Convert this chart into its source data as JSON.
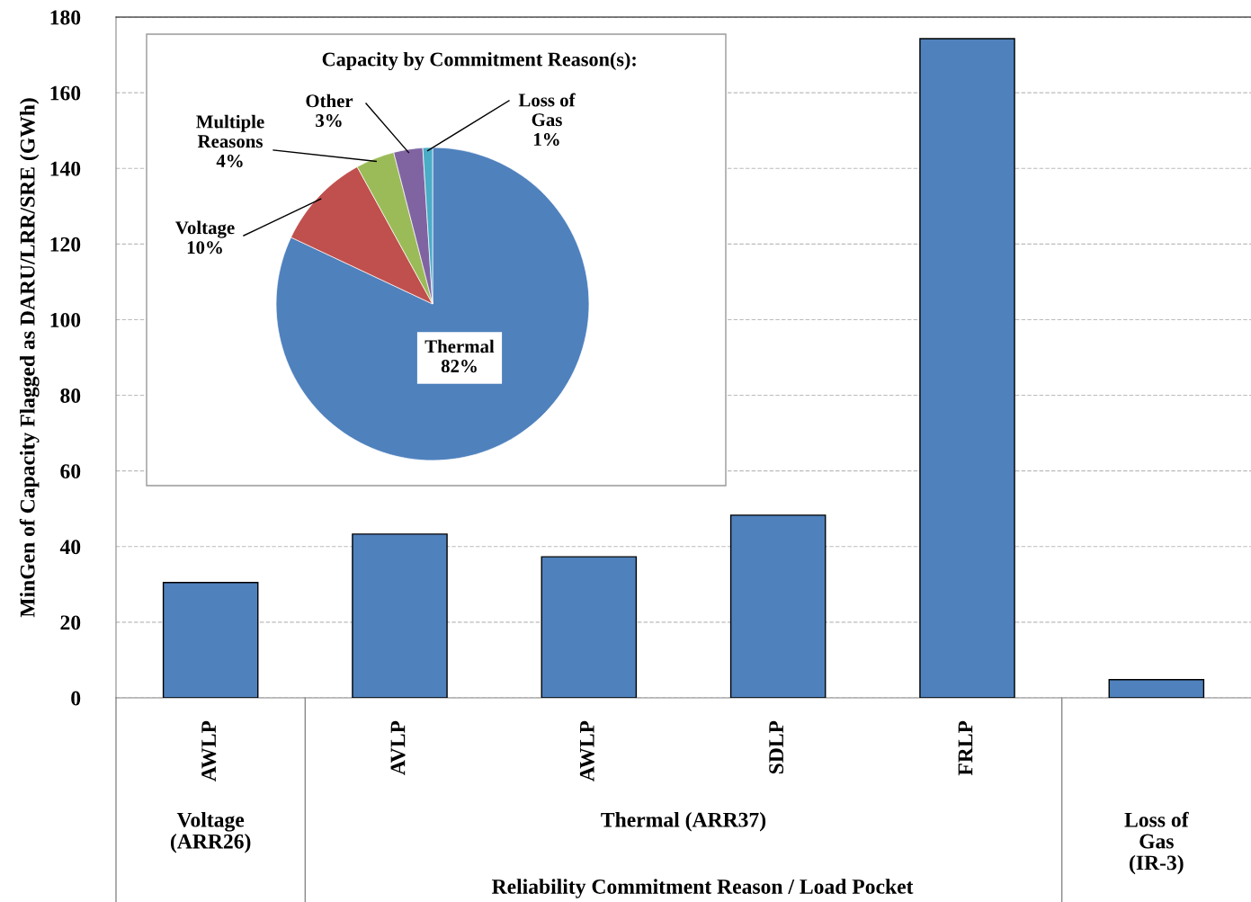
{
  "chart_data": [
    {
      "type": "bar",
      "categories": [
        "AWLP",
        "AVLP",
        "AWLP",
        "SDLP",
        "FRLP",
        null
      ],
      "series": [
        {
          "color": "#4f81bd",
          "values": [
            30.5,
            43.3,
            37.3,
            48.3,
            174.3,
            4.8
          ]
        }
      ],
      "ylabel": "MinGen of Capacity Flagged as DARU/LRR/SRE (GWh)",
      "xlabel": "Reliability Commitment Reason / Load Pocket",
      "annotations": [
        "Voltage\n(ARR26)",
        "Thermal (ARR37)",
        "Loss of\nGas\n(IR-3)"
      ],
      "ylim": [
        0,
        180
      ],
      "yticks": [
        0,
        20,
        40,
        60,
        80,
        100,
        120,
        140,
        160,
        180
      ],
      "grid": "y"
    },
    {
      "type": "pie",
      "title": "Capacity by Commitment Reason(s):",
      "categories": [
        "Thermal",
        "Voltage",
        "Multiple\nReasons",
        "Other",
        "Loss of\nGas"
      ],
      "values": [
        82,
        10,
        4,
        3,
        1
      ],
      "value_labels": [
        "82%",
        "10%",
        "4%",
        "3%",
        "1%"
      ],
      "colors": [
        "#4f81bd",
        "#c0504d",
        "#9bbb59",
        "#8064a2",
        "#4bacc6"
      ]
    }
  ]
}
